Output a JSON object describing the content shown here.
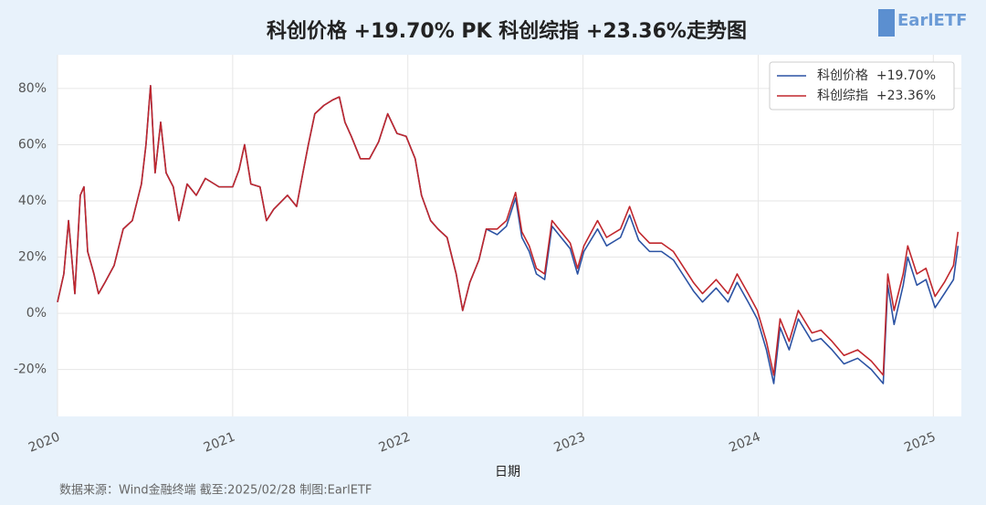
{
  "chart_data": {
    "type": "line",
    "title": "科创价格  +19.70% PK 科创综指  +23.36%走势图",
    "xlabel": "日期",
    "source": "数据来源：Wind金融终端 截至:2025/02/28 制图:EarlETF",
    "logo": "EarlETF",
    "x": [
      2020,
      2020.036,
      2020.063,
      2020.099,
      2020.13,
      2020.151,
      2020.172,
      2020.208,
      2020.234,
      2020.271,
      2020.323,
      2020.375,
      2020.427,
      2020.479,
      2020.505,
      2020.531,
      2020.557,
      2020.589,
      2020.62,
      2020.661,
      2020.693,
      2020.74,
      2020.792,
      2020.844,
      2020.922,
      2021,
      2021.036,
      2021.068,
      2021.104,
      2021.156,
      2021.193,
      2021.234,
      2021.313,
      2021.365,
      2021.401,
      2021.432,
      2021.469,
      2021.521,
      2021.573,
      2021.609,
      2021.641,
      2021.677,
      2021.729,
      2021.781,
      2021.833,
      2021.885,
      2021.938,
      2021.99,
      2022.042,
      2022.078,
      2022.13,
      2022.172,
      2022.224,
      2022.276,
      2022.313,
      2022.354,
      2022.406,
      2022.448,
      2022.51,
      2022.563,
      2022.615,
      2022.651,
      2022.693,
      2022.734,
      2022.781,
      2022.823,
      2022.875,
      2022.927,
      2022.969,
      2023.005,
      2023.083,
      2023.135,
      2023.214,
      2023.266,
      2023.318,
      2023.38,
      2023.448,
      2023.516,
      2023.568,
      2023.63,
      2023.682,
      2023.76,
      2023.828,
      2023.88,
      2023.943,
      2023.995,
      2024.047,
      2024.089,
      2024.125,
      2024.177,
      2024.229,
      2024.307,
      2024.359,
      2024.422,
      2024.49,
      2024.568,
      2024.646,
      2024.714,
      2024.74,
      2024.776,
      2024.828,
      2024.854,
      2024.906,
      2024.958,
      2025.01,
      2025.063,
      2025.115,
      2025.141
    ],
    "series": [
      {
        "name": "科创价格  +19.70%",
        "color": "#2b52a3",
        "values": [
          4,
          14,
          33,
          7,
          42,
          45,
          22,
          14,
          7,
          11,
          17,
          30,
          33,
          46,
          60,
          81,
          50,
          68,
          50,
          45,
          33,
          46,
          42,
          48,
          45,
          45,
          51,
          60,
          46,
          45,
          33,
          37,
          42,
          38,
          50,
          60,
          71,
          74,
          76,
          77,
          68,
          63,
          55,
          55,
          61,
          71,
          64,
          63,
          55,
          42,
          33,
          30,
          27,
          14,
          1,
          11,
          19,
          30,
          28,
          31,
          41,
          27,
          22,
          14,
          12,
          31,
          27,
          23,
          14,
          22,
          30,
          24,
          27,
          35,
          26,
          22,
          22,
          19,
          14,
          8,
          4,
          9,
          4,
          11,
          4,
          -2,
          -13,
          -25,
          -5,
          -13,
          -2,
          -10,
          -9,
          -13,
          -18,
          -16,
          -20,
          -25,
          10,
          -4,
          10,
          20,
          10,
          12,
          2,
          7,
          12,
          24
        ]
      },
      {
        "name": "科创综指  +23.36%",
        "color": "#c0272d",
        "values": [
          4,
          14,
          33,
          7,
          42,
          45,
          22,
          14,
          7,
          11,
          17,
          30,
          33,
          46,
          60,
          81,
          50,
          68,
          50,
          45,
          33,
          46,
          42,
          48,
          45,
          45,
          51,
          60,
          46,
          45,
          33,
          37,
          42,
          38,
          50,
          60,
          71,
          74,
          76,
          77,
          68,
          63,
          55,
          55,
          61,
          71,
          64,
          63,
          55,
          42,
          33,
          30,
          27,
          14,
          1,
          11,
          19,
          30,
          30,
          33,
          43,
          29,
          24,
          16,
          14,
          33,
          29,
          25,
          16,
          24,
          33,
          27,
          30,
          38,
          29,
          25,
          25,
          22,
          17,
          11,
          7,
          12,
          7,
          14,
          7,
          1,
          -10,
          -22,
          -2,
          -10,
          1,
          -7,
          -6,
          -10,
          -15,
          -13,
          -17,
          -22,
          14,
          1,
          14,
          24,
          14,
          16,
          6,
          11,
          17,
          29
        ]
      }
    ],
    "xlim": [
      2020,
      2025.16
    ],
    "xticks": [
      2020,
      2021,
      2022,
      2023,
      2024,
      2025
    ],
    "ylim": [
      -36.7,
      92
    ],
    "yticks": [
      {
        "value": -20,
        "label": "-20%"
      },
      {
        "value": 0,
        "label": "0%"
      },
      {
        "value": 20,
        "label": "20%"
      },
      {
        "value": 40,
        "label": "40%"
      },
      {
        "value": 60,
        "label": "60%"
      },
      {
        "value": 80,
        "label": "80%"
      }
    ],
    "grid": true,
    "legend": "upper right"
  }
}
